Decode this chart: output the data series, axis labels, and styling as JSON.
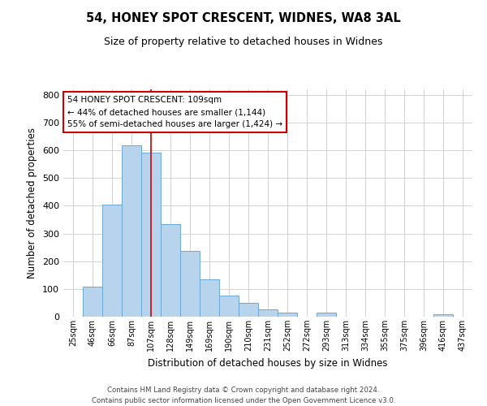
{
  "title": "54, HONEY SPOT CRESCENT, WIDNES, WA8 3AL",
  "subtitle": "Size of property relative to detached houses in Widnes",
  "xlabel": "Distribution of detached houses by size in Widnes",
  "ylabel": "Number of detached properties",
  "bar_labels": [
    "25sqm",
    "46sqm",
    "66sqm",
    "87sqm",
    "107sqm",
    "128sqm",
    "149sqm",
    "169sqm",
    "190sqm",
    "210sqm",
    "231sqm",
    "252sqm",
    "272sqm",
    "293sqm",
    "313sqm",
    "334sqm",
    "355sqm",
    "375sqm",
    "396sqm",
    "416sqm",
    "437sqm"
  ],
  "bar_values": [
    0,
    107,
    403,
    617,
    591,
    333,
    237,
    136,
    76,
    49,
    25,
    16,
    0,
    15,
    0,
    0,
    0,
    0,
    0,
    8,
    0
  ],
  "bar_color": "#b8d4ec",
  "bar_edgecolor": "#6aaad4",
  "ylim": [
    0,
    820
  ],
  "yticks": [
    0,
    100,
    200,
    300,
    400,
    500,
    600,
    700,
    800
  ],
  "vline_color": "#cc0000",
  "annotation_line1": "54 HONEY SPOT CRESCENT: 109sqm",
  "annotation_line2": "← 44% of detached houses are smaller (1,144)",
  "annotation_line3": "55% of semi-detached houses are larger (1,424) →",
  "annotation_box_color": "#ffffff",
  "annotation_box_edgecolor": "#cc0000",
  "footer_text": "Contains HM Land Registry data © Crown copyright and database right 2024.\nContains public sector information licensed under the Open Government Licence v3.0.",
  "background_color": "#ffffff",
  "grid_color": "#cccccc"
}
